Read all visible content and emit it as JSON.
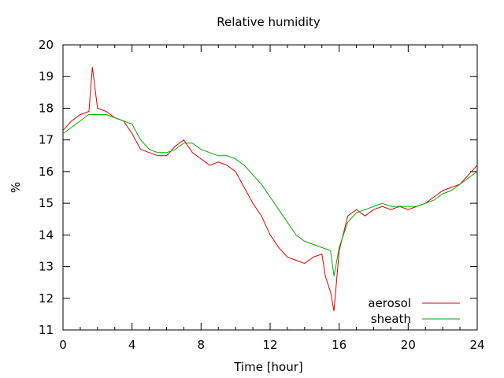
{
  "chart_data": {
    "type": "line",
    "title": "Relative humidity",
    "xlabel": "Time [hour]",
    "ylabel": "%",
    "xlim": [
      0,
      24
    ],
    "ylim": [
      11,
      20
    ],
    "x_ticks": [
      0,
      4,
      8,
      12,
      16,
      20,
      24
    ],
    "y_ticks": [
      11,
      12,
      13,
      14,
      15,
      16,
      17,
      18,
      19,
      20
    ],
    "grid": false,
    "legend_position": "bottom-right",
    "series": [
      {
        "name": "aerosol",
        "color": "#dd0000",
        "x": [
          0,
          0.5,
          1,
          1.5,
          1.7,
          2,
          2.5,
          3,
          3.5,
          4,
          4.5,
          5,
          5.5,
          6,
          6.5,
          7,
          7.5,
          8,
          8.5,
          9,
          9.5,
          10,
          10.5,
          11,
          11.5,
          12,
          12.5,
          13,
          13.5,
          14,
          14.5,
          15,
          15.2,
          15.5,
          15.7,
          16,
          16.5,
          17,
          17.5,
          18,
          18.5,
          19,
          19.5,
          20,
          20.5,
          21,
          21.5,
          22,
          22.5,
          23,
          23.5,
          24
        ],
        "y": [
          17.3,
          17.6,
          17.8,
          17.9,
          19.3,
          18.0,
          17.9,
          17.7,
          17.6,
          17.2,
          16.7,
          16.6,
          16.5,
          16.5,
          16.8,
          17.0,
          16.6,
          16.4,
          16.2,
          16.3,
          16.2,
          16.0,
          15.5,
          15.0,
          14.6,
          14.0,
          13.6,
          13.3,
          13.2,
          13.1,
          13.3,
          13.4,
          12.7,
          12.2,
          11.6,
          13.5,
          14.6,
          14.8,
          14.6,
          14.8,
          14.9,
          14.8,
          14.9,
          14.8,
          14.9,
          15.0,
          15.2,
          15.4,
          15.5,
          15.6,
          15.9,
          16.2
        ]
      },
      {
        "name": "sheath",
        "color": "#00aa00",
        "x": [
          0,
          0.5,
          1,
          1.5,
          2,
          2.5,
          3,
          3.5,
          4,
          4.5,
          5,
          5.5,
          6,
          6.5,
          7,
          7.5,
          8,
          8.5,
          9,
          9.5,
          10,
          10.5,
          11,
          11.5,
          12,
          12.5,
          13,
          13.5,
          14,
          14.5,
          15,
          15.5,
          15.7,
          16,
          16.5,
          17,
          17.5,
          18,
          18.5,
          19,
          19.5,
          20,
          20.5,
          21,
          21.5,
          22,
          22.5,
          23,
          23.5,
          24
        ],
        "y": [
          17.2,
          17.4,
          17.6,
          17.8,
          17.8,
          17.8,
          17.7,
          17.6,
          17.5,
          17.0,
          16.7,
          16.6,
          16.6,
          16.7,
          16.9,
          16.9,
          16.7,
          16.6,
          16.5,
          16.5,
          16.4,
          16.2,
          15.9,
          15.6,
          15.2,
          14.8,
          14.4,
          14.0,
          13.8,
          13.7,
          13.6,
          13.5,
          12.7,
          13.6,
          14.4,
          14.7,
          14.8,
          14.9,
          15.0,
          14.9,
          14.9,
          14.9,
          14.9,
          15.0,
          15.1,
          15.3,
          15.4,
          15.6,
          15.8,
          16.0
        ]
      }
    ]
  }
}
